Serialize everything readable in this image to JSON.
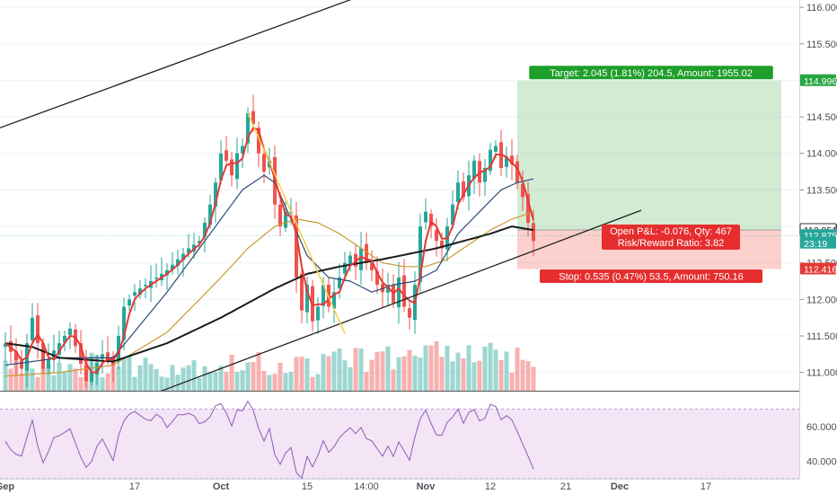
{
  "chart_data": {
    "type": "candlestick",
    "price_axis": {
      "ylim": [
        110.75,
        116.1
      ],
      "ticks": [
        "116.000",
        "115.500",
        "115.000",
        "114.500",
        "114.000",
        "113.500",
        "113.000",
        "112.500",
        "112.000",
        "111.500",
        "111.000"
      ],
      "tick_values": [
        116.0,
        115.5,
        115.0,
        114.5,
        114.0,
        113.5,
        113.0,
        112.5,
        112.0,
        111.5,
        111.0
      ]
    },
    "rsi_axis": {
      "ylim": [
        30,
        80
      ],
      "ticks": [
        "60.000",
        "40.000"
      ],
      "tick_values": [
        60,
        40
      ],
      "band": [
        70,
        30
      ]
    },
    "time_axis": {
      "ticks": [
        "Sep",
        "17",
        "Oct",
        "15",
        "14:00",
        "Nov",
        "12",
        "21",
        "Dec",
        "17"
      ],
      "bold": [
        "Sep",
        "Oct",
        "Nov",
        "Dec"
      ],
      "tick_index": [
        0,
        24,
        40,
        56,
        67,
        78,
        90,
        104,
        114,
        130
      ]
    },
    "price_labels": [
      {
        "text": "114.996",
        "value": 114.996,
        "color": "#26a641"
      },
      {
        "text": "112.951",
        "value": 112.951,
        "color": "#333333"
      },
      {
        "text": "112.875",
        "value": 112.875,
        "color": "#26a69a"
      },
      {
        "text": "23:19",
        "value": 112.77,
        "color": "#26a69a"
      },
      {
        "text": "112.416",
        "value": 112.416,
        "color": "#e53935"
      }
    ],
    "position": {
      "entry": 112.951,
      "target": 114.996,
      "stop": 112.416,
      "start_index": 95,
      "end_index": 144,
      "target_label": "Target: 2.045 (1.81%) 204.5, Amount: 1955.02",
      "open_label": "Open P&L: -0.076, Qty: 467",
      "ratio_label": "Risk/Reward Ratio: 3.82",
      "stop_label": "Stop: 0.535 (0.47%) 53.5, Amount: 750.16"
    },
    "trendlines": [
      {
        "from": [
          -1,
          114.35
        ],
        "to": [
          65,
          116.13
        ],
        "color": "#222222"
      },
      {
        "from": [
          28,
          110.72
        ],
        "to": [
          118,
          113.22
        ],
        "color": "#222222"
      },
      {
        "from": [
          45,
          114.55
        ],
        "to": [
          63,
          111.53
        ],
        "color": "#f4d03f"
      }
    ],
    "anchors_close": [
      [
        0,
        111.4
      ],
      [
        3,
        111.05
      ],
      [
        5,
        111.75
      ],
      [
        7,
        111.05
      ],
      [
        9,
        111.3
      ],
      [
        12,
        111.6
      ],
      [
        15,
        110.88
      ],
      [
        18,
        111.25
      ],
      [
        20,
        111.1
      ],
      [
        22,
        111.9
      ],
      [
        24,
        112.1
      ],
      [
        26,
        112.2
      ],
      [
        28,
        112.3
      ],
      [
        30,
        112.4
      ],
      [
        32,
        112.55
      ],
      [
        34,
        112.7
      ],
      [
        36,
        112.8
      ],
      [
        38,
        113.3
      ],
      [
        39,
        113.6
      ],
      [
        40,
        114.0
      ],
      [
        41,
        113.9
      ],
      [
        42,
        113.7
      ],
      [
        43,
        114.0
      ],
      [
        44,
        114.1
      ],
      [
        45,
        114.55
      ],
      [
        46,
        114.4
      ],
      [
        47,
        114.0
      ],
      [
        48,
        113.75
      ],
      [
        49,
        113.9
      ],
      [
        50,
        113.3
      ],
      [
        51,
        113.0
      ],
      [
        52,
        113.2
      ],
      [
        53,
        113.2
      ],
      [
        54,
        112.3
      ],
      [
        55,
        111.85
      ],
      [
        56,
        112.2
      ],
      [
        57,
        111.7
      ],
      [
        58,
        111.9
      ],
      [
        59,
        112.2
      ],
      [
        60,
        111.9
      ],
      [
        61,
        112.1
      ],
      [
        62,
        112.3
      ],
      [
        63,
        112.5
      ],
      [
        64,
        112.6
      ],
      [
        65,
        112.45
      ],
      [
        66,
        112.7
      ],
      [
        67,
        112.5
      ],
      [
        68,
        112.4
      ],
      [
        69,
        112.2
      ],
      [
        70,
        112.1
      ],
      [
        71,
        112.2
      ],
      [
        72,
        111.95
      ],
      [
        73,
        112.3
      ],
      [
        74,
        111.9
      ],
      [
        75,
        111.75
      ],
      [
        76,
        112.2
      ],
      [
        77,
        113.0
      ],
      [
        78,
        113.2
      ],
      [
        79,
        113.0
      ],
      [
        80,
        112.8
      ],
      [
        81,
        112.7
      ],
      [
        82,
        113.0
      ],
      [
        83,
        113.3
      ],
      [
        84,
        113.6
      ],
      [
        85,
        113.4
      ],
      [
        86,
        113.7
      ],
      [
        87,
        113.9
      ],
      [
        88,
        113.6
      ],
      [
        89,
        113.8
      ],
      [
        90,
        114.05
      ],
      [
        91,
        114.1
      ],
      [
        92,
        113.8
      ],
      [
        93,
        113.95
      ],
      [
        94,
        113.85
      ],
      [
        95,
        113.6
      ],
      [
        96,
        113.4
      ],
      [
        97,
        113.05
      ],
      [
        98,
        112.8
      ]
    ],
    "anchors_ma_blue": [
      [
        0,
        111.1
      ],
      [
        10,
        111.2
      ],
      [
        20,
        111.2
      ],
      [
        25,
        111.65
      ],
      [
        30,
        112.1
      ],
      [
        35,
        112.6
      ],
      [
        40,
        113.1
      ],
      [
        44,
        113.5
      ],
      [
        48,
        113.7
      ],
      [
        50,
        113.6
      ],
      [
        53,
        113.1
      ],
      [
        56,
        112.6
      ],
      [
        60,
        112.3
      ],
      [
        64,
        112.25
      ],
      [
        68,
        112.1
      ],
      [
        72,
        112.2
      ],
      [
        76,
        112.25
      ],
      [
        80,
        112.4
      ],
      [
        84,
        112.9
      ],
      [
        88,
        113.2
      ],
      [
        92,
        113.5
      ],
      [
        95,
        113.6
      ],
      [
        98,
        113.65
      ]
    ],
    "anchors_ma_orange": [
      [
        0,
        110.95
      ],
      [
        10,
        111.0
      ],
      [
        20,
        111.1
      ],
      [
        30,
        111.55
      ],
      [
        40,
        112.3
      ],
      [
        45,
        112.7
      ],
      [
        50,
        113.0
      ],
      [
        54,
        113.1
      ],
      [
        58,
        113.05
      ],
      [
        62,
        112.9
      ],
      [
        66,
        112.7
      ],
      [
        70,
        112.5
      ],
      [
        74,
        112.45
      ],
      [
        78,
        112.45
      ],
      [
        82,
        112.55
      ],
      [
        86,
        112.75
      ],
      [
        90,
        112.95
      ],
      [
        94,
        113.1
      ],
      [
        98,
        113.2
      ]
    ],
    "anchors_ma_black": [
      [
        0,
        111.4
      ],
      [
        5,
        111.35
      ],
      [
        10,
        111.2
      ],
      [
        20,
        111.15
      ],
      [
        30,
        111.4
      ],
      [
        40,
        111.75
      ],
      [
        50,
        112.15
      ],
      [
        56,
        112.35
      ],
      [
        62,
        112.45
      ],
      [
        70,
        112.55
      ],
      [
        80,
        112.7
      ],
      [
        90,
        112.9
      ],
      [
        94,
        113.0
      ],
      [
        98,
        112.95
      ]
    ],
    "anchors_rsi": [
      [
        0,
        50
      ],
      [
        3,
        42
      ],
      [
        5,
        62
      ],
      [
        7,
        38
      ],
      [
        9,
        52
      ],
      [
        12,
        58
      ],
      [
        15,
        36
      ],
      [
        18,
        52
      ],
      [
        20,
        42
      ],
      [
        22,
        64
      ],
      [
        24,
        68
      ],
      [
        26,
        64
      ],
      [
        28,
        66
      ],
      [
        30,
        60
      ],
      [
        32,
        66
      ],
      [
        34,
        68
      ],
      [
        36,
        62
      ],
      [
        38,
        66
      ],
      [
        39,
        70
      ],
      [
        40,
        72
      ],
      [
        41,
        66
      ],
      [
        42,
        62
      ],
      [
        43,
        68
      ],
      [
        44,
        70
      ],
      [
        45,
        76
      ],
      [
        46,
        70
      ],
      [
        47,
        58
      ],
      [
        48,
        52
      ],
      [
        49,
        58
      ],
      [
        50,
        45
      ],
      [
        51,
        40
      ],
      [
        52,
        44
      ],
      [
        53,
        46
      ],
      [
        54,
        34
      ],
      [
        55,
        31
      ],
      [
        56,
        42
      ],
      [
        57,
        36
      ],
      [
        58,
        44
      ],
      [
        59,
        50
      ],
      [
        60,
        44
      ],
      [
        61,
        50
      ],
      [
        62,
        54
      ],
      [
        63,
        58
      ],
      [
        64,
        60
      ],
      [
        65,
        54
      ],
      [
        66,
        60
      ],
      [
        67,
        54
      ],
      [
        68,
        52
      ],
      [
        69,
        48
      ],
      [
        70,
        44
      ],
      [
        71,
        48
      ],
      [
        72,
        42
      ],
      [
        73,
        52
      ],
      [
        74,
        44
      ],
      [
        75,
        40
      ],
      [
        76,
        54
      ],
      [
        77,
        66
      ],
      [
        78,
        70
      ],
      [
        79,
        62
      ],
      [
        80,
        56
      ],
      [
        81,
        55
      ],
      [
        82,
        62
      ],
      [
        83,
        66
      ],
      [
        84,
        68
      ],
      [
        85,
        62
      ],
      [
        86,
        68
      ],
      [
        87,
        70
      ],
      [
        88,
        62
      ],
      [
        89,
        66
      ],
      [
        90,
        72
      ],
      [
        91,
        72
      ],
      [
        92,
        64
      ],
      [
        93,
        66
      ],
      [
        94,
        64
      ],
      [
        95,
        56
      ],
      [
        96,
        50
      ],
      [
        97,
        42
      ],
      [
        98,
        34
      ]
    ],
    "total_bars": 99
  }
}
